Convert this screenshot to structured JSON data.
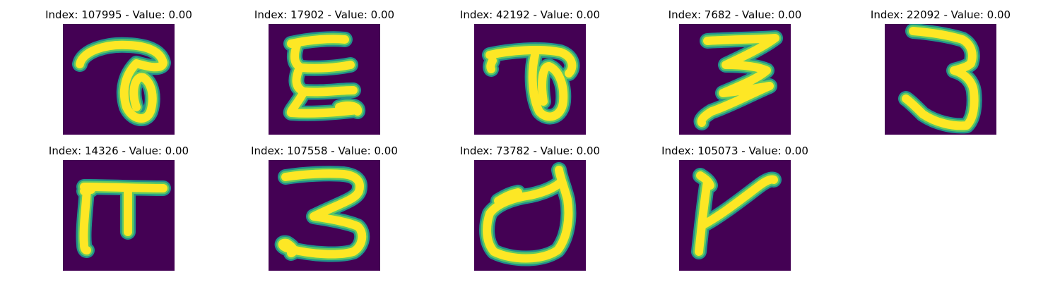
{
  "colors": {
    "background": "#440154",
    "glyph_core": "#fde725",
    "glyph_mid": "#5ec962",
    "glyph_edge": "#21918c"
  },
  "panels": [
    {
      "title": "Index: 107995 - Value: 0.00"
    },
    {
      "title": "Index: 17902 - Value: 0.00"
    },
    {
      "title": "Index: 42192 - Value: 0.00"
    },
    {
      "title": "Index: 7682 - Value: 0.00"
    },
    {
      "title": "Index: 22092 - Value: 0.00"
    },
    {
      "title": "Index: 14326 - Value: 0.00"
    },
    {
      "title": "Index: 107558 - Value: 0.00"
    },
    {
      "title": "Index: 73782 - Value: 0.00"
    },
    {
      "title": "Index: 105073 - Value: 0.00"
    }
  ]
}
